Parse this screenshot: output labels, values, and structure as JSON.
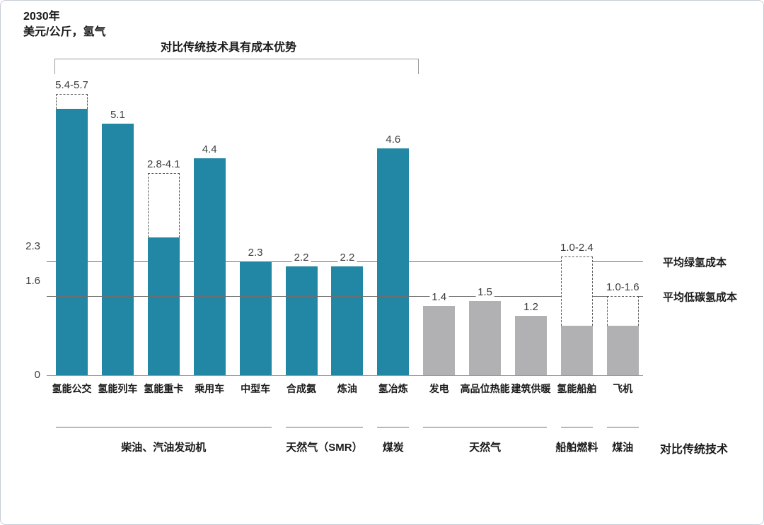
{
  "colors": {
    "teal": "#2287a5",
    "gray": "#b1b1b3"
  },
  "chart_data": {
    "type": "bar",
    "year": "2030年",
    "unit": "美元/公斤，氢气",
    "annotation": "对比传统技术具有成本优势",
    "comparison_footer": "对比传统技术",
    "ylim": [
      0,
      6.2
    ],
    "grid": false,
    "legend": false,
    "yticks": [
      {
        "value": 0,
        "label": "0"
      },
      {
        "value": 1.6,
        "label": "1.6"
      },
      {
        "value": 2.3,
        "label": "2.3"
      }
    ],
    "reference_lines": [
      {
        "value": 2.3,
        "label": "平均绿氢成本"
      },
      {
        "value": 1.6,
        "label": "平均低碳氢成本"
      }
    ],
    "bars": [
      {
        "category": "氢能公交",
        "value": 5.4,
        "range_max": 5.7,
        "display": "5.4-5.7",
        "color": "teal"
      },
      {
        "category": "氢能列车",
        "value": 5.1,
        "range_max": null,
        "display": "5.1",
        "color": "teal"
      },
      {
        "category": "氢能重卡",
        "value": 2.8,
        "range_max": 4.1,
        "display": "2.8-4.1",
        "color": "teal"
      },
      {
        "category": "乘用车",
        "value": 4.4,
        "range_max": null,
        "display": "4.4",
        "color": "teal"
      },
      {
        "category": "中型车",
        "value": 2.3,
        "range_max": null,
        "display": "2.3",
        "color": "teal"
      },
      {
        "category": "合成氨",
        "value": 2.2,
        "range_max": null,
        "display": "2.2",
        "color": "teal"
      },
      {
        "category": "炼油",
        "value": 2.2,
        "range_max": null,
        "display": "2.2",
        "color": "teal"
      },
      {
        "category": "氢冶炼",
        "value": 4.6,
        "range_max": null,
        "display": "4.6",
        "color": "teal"
      },
      {
        "category": "发电",
        "value": 1.4,
        "range_max": null,
        "display": "1.4",
        "color": "gray"
      },
      {
        "category": "高品位热能",
        "value": 1.5,
        "range_max": null,
        "display": "1.5",
        "color": "gray"
      },
      {
        "category": "建筑供暖",
        "value": 1.2,
        "range_max": null,
        "display": "1.2",
        "color": "gray"
      },
      {
        "category": "氢能船舶",
        "value": 1.0,
        "range_max": 2.4,
        "display": "1.0-2.4",
        "color": "gray"
      },
      {
        "category": "飞机",
        "value": 1.0,
        "range_max": 1.6,
        "display": "1.0-1.6",
        "color": "gray"
      }
    ],
    "groups": [
      {
        "label": "柴油、汽油发动机",
        "from": 0,
        "to": 4
      },
      {
        "label": "天然气（SMR）",
        "from": 5,
        "to": 6
      },
      {
        "label": "煤炭",
        "from": 7,
        "to": 7
      },
      {
        "label": "天然气",
        "from": 8,
        "to": 10
      },
      {
        "label": "船舶燃料",
        "from": 11,
        "to": 11
      },
      {
        "label": "煤油",
        "from": 12,
        "to": 12
      }
    ]
  }
}
